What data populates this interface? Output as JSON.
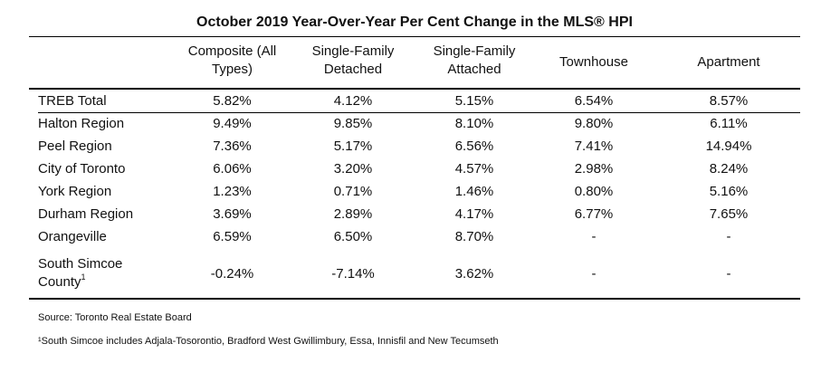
{
  "title": "October 2019 Year-Over-Year Per Cent Change in the MLS® HPI",
  "columns": [
    {
      "line1": "Composite (All",
      "line2": "Types)"
    },
    {
      "line1": "Single-Family",
      "line2": "Detached"
    },
    {
      "line1": "Single-Family",
      "line2": "Attached"
    },
    {
      "line1": "Townhouse",
      "line2": ""
    },
    {
      "line1": "Apartment",
      "line2": ""
    }
  ],
  "rows": [
    {
      "name": "TREB Total",
      "values": [
        "5.82%",
        "4.12%",
        "5.15%",
        "6.54%",
        "8.57%"
      ]
    },
    {
      "name": "Halton Region",
      "values": [
        "9.49%",
        "9.85%",
        "8.10%",
        "9.80%",
        "6.11%"
      ]
    },
    {
      "name": "Peel Region",
      "values": [
        "7.36%",
        "5.17%",
        "6.56%",
        "7.41%",
        "14.94%"
      ]
    },
    {
      "name": "City of Toronto",
      "values": [
        "6.06%",
        "3.20%",
        "4.57%",
        "2.98%",
        "8.24%"
      ]
    },
    {
      "name": "York Region",
      "values": [
        "1.23%",
        "0.71%",
        "1.46%",
        "0.80%",
        "5.16%"
      ]
    },
    {
      "name": "Durham Region",
      "values": [
        "3.69%",
        "2.89%",
        "4.17%",
        "6.77%",
        "7.65%"
      ]
    },
    {
      "name": "Orangeville",
      "values": [
        "6.59%",
        "6.50%",
        "8.70%",
        "-",
        "-"
      ]
    },
    {
      "name_line1": "South Simcoe",
      "name_line2": "County",
      "footnote_mark": "1",
      "values": [
        "-0.24%",
        "-7.14%",
        "3.62%",
        "-",
        "-"
      ]
    }
  ],
  "source": "Source: Toronto Real Estate Board",
  "footnote": "¹South Simcoe includes Adjala-Tosorontio, Bradford West Gwillimbury, Essa, Innisfil and New Tecumseth"
}
